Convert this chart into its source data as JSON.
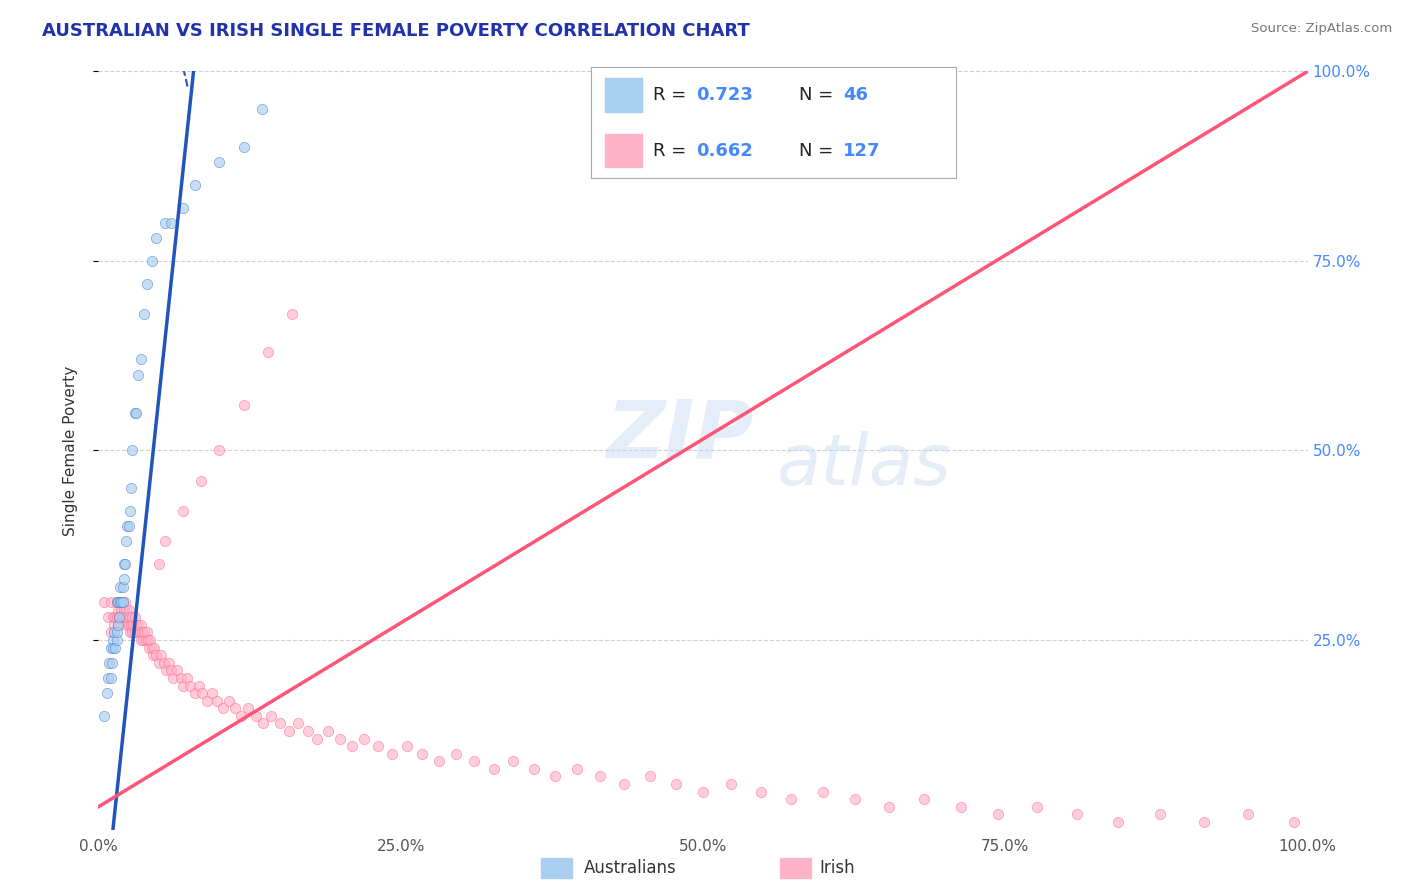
{
  "title": "AUSTRALIAN VS IRISH SINGLE FEMALE POVERTY CORRELATION CHART",
  "source": "Source: ZipAtlas.com",
  "ylabel": "Single Female Poverty",
  "xlim": [
    0.0,
    1.0
  ],
  "ylim": [
    0.0,
    1.0
  ],
  "xtick_positions": [
    0.0,
    0.25,
    0.5,
    0.75,
    1.0
  ],
  "xtick_labels": [
    "0.0%",
    "25.0%",
    "50.0%",
    "75.0%",
    "100.0%"
  ],
  "ytick_positions": [
    0.25,
    0.5,
    0.75,
    1.0
  ],
  "ytick_labels": [
    "25.0%",
    "50.0%",
    "75.0%",
    "100.0%"
  ],
  "watermark_line1": "ZIP",
  "watermark_line2": "atlas",
  "aus_color": "#a8cff0",
  "aus_edge_color": "#4477cc",
  "irish_color": "#ffb3c8",
  "irish_edge_color": "#ff6688",
  "aus_line_color": "#2255bb",
  "irish_line_color": "#ff5577",
  "legend_box_aus": "#a8cff0",
  "legend_box_irish": "#ffb3c8",
  "R_aus": 0.723,
  "N_aus": 46,
  "R_irish": 0.662,
  "N_irish": 127,
  "title_fontsize": 13,
  "label_fontsize": 11,
  "tick_fontsize": 11,
  "background_color": "#ffffff",
  "grid_color": "#cccccc",
  "aus_line_slope": 15.0,
  "aus_line_intercept": -0.18,
  "irish_line_slope": 0.97,
  "irish_line_intercept": 0.03,
  "aus_scatter_x": [
    0.005,
    0.007,
    0.008,
    0.009,
    0.01,
    0.01,
    0.011,
    0.012,
    0.012,
    0.013,
    0.014,
    0.015,
    0.015,
    0.015,
    0.016,
    0.016,
    0.017,
    0.018,
    0.018,
    0.019,
    0.02,
    0.02,
    0.021,
    0.021,
    0.022,
    0.023,
    0.024,
    0.025,
    0.026,
    0.027,
    0.028,
    0.03,
    0.031,
    0.033,
    0.035,
    0.038,
    0.04,
    0.044,
    0.048,
    0.055,
    0.06,
    0.07,
    0.08,
    0.1,
    0.12,
    0.135
  ],
  "aus_scatter_y": [
    0.15,
    0.18,
    0.2,
    0.22,
    0.2,
    0.24,
    0.22,
    0.25,
    0.24,
    0.26,
    0.24,
    0.25,
    0.26,
    0.3,
    0.27,
    0.3,
    0.28,
    0.3,
    0.32,
    0.3,
    0.3,
    0.32,
    0.33,
    0.35,
    0.35,
    0.38,
    0.4,
    0.4,
    0.42,
    0.45,
    0.5,
    0.55,
    0.55,
    0.6,
    0.62,
    0.68,
    0.72,
    0.75,
    0.78,
    0.8,
    0.8,
    0.82,
    0.85,
    0.88,
    0.9,
    0.95
  ],
  "irish_scatter_x": [
    0.005,
    0.008,
    0.01,
    0.01,
    0.012,
    0.013,
    0.014,
    0.015,
    0.015,
    0.016,
    0.016,
    0.017,
    0.018,
    0.018,
    0.019,
    0.02,
    0.02,
    0.021,
    0.022,
    0.022,
    0.023,
    0.023,
    0.024,
    0.025,
    0.025,
    0.026,
    0.026,
    0.027,
    0.028,
    0.028,
    0.029,
    0.03,
    0.03,
    0.031,
    0.032,
    0.033,
    0.034,
    0.035,
    0.035,
    0.036,
    0.037,
    0.038,
    0.039,
    0.04,
    0.041,
    0.042,
    0.043,
    0.044,
    0.045,
    0.046,
    0.048,
    0.05,
    0.052,
    0.054,
    0.056,
    0.058,
    0.06,
    0.062,
    0.065,
    0.068,
    0.07,
    0.073,
    0.076,
    0.08,
    0.083,
    0.086,
    0.09,
    0.094,
    0.098,
    0.103,
    0.108,
    0.113,
    0.118,
    0.124,
    0.13,
    0.136,
    0.143,
    0.15,
    0.158,
    0.165,
    0.173,
    0.181,
    0.19,
    0.2,
    0.21,
    0.22,
    0.231,
    0.243,
    0.255,
    0.268,
    0.282,
    0.296,
    0.311,
    0.327,
    0.343,
    0.36,
    0.378,
    0.396,
    0.415,
    0.435,
    0.456,
    0.478,
    0.5,
    0.523,
    0.548,
    0.573,
    0.599,
    0.626,
    0.654,
    0.683,
    0.713,
    0.744,
    0.776,
    0.809,
    0.843,
    0.878,
    0.914,
    0.951,
    0.989,
    0.05,
    0.055,
    0.07,
    0.085,
    0.1,
    0.12,
    0.14,
    0.16
  ],
  "irish_scatter_y": [
    0.3,
    0.28,
    0.3,
    0.26,
    0.28,
    0.27,
    0.28,
    0.3,
    0.28,
    0.29,
    0.27,
    0.28,
    0.3,
    0.28,
    0.29,
    0.3,
    0.28,
    0.29,
    0.3,
    0.28,
    0.29,
    0.27,
    0.28,
    0.29,
    0.27,
    0.28,
    0.26,
    0.27,
    0.28,
    0.26,
    0.27,
    0.28,
    0.26,
    0.27,
    0.26,
    0.27,
    0.26,
    0.27,
    0.25,
    0.26,
    0.25,
    0.26,
    0.25,
    0.26,
    0.25,
    0.24,
    0.25,
    0.24,
    0.23,
    0.24,
    0.23,
    0.22,
    0.23,
    0.22,
    0.21,
    0.22,
    0.21,
    0.2,
    0.21,
    0.2,
    0.19,
    0.2,
    0.19,
    0.18,
    0.19,
    0.18,
    0.17,
    0.18,
    0.17,
    0.16,
    0.17,
    0.16,
    0.15,
    0.16,
    0.15,
    0.14,
    0.15,
    0.14,
    0.13,
    0.14,
    0.13,
    0.12,
    0.13,
    0.12,
    0.11,
    0.12,
    0.11,
    0.1,
    0.11,
    0.1,
    0.09,
    0.1,
    0.09,
    0.08,
    0.09,
    0.08,
    0.07,
    0.08,
    0.07,
    0.06,
    0.07,
    0.06,
    0.05,
    0.06,
    0.05,
    0.04,
    0.05,
    0.04,
    0.03,
    0.04,
    0.03,
    0.02,
    0.03,
    0.02,
    0.01,
    0.02,
    0.01,
    0.02,
    0.01,
    0.35,
    0.38,
    0.42,
    0.46,
    0.5,
    0.56,
    0.63,
    0.68
  ]
}
